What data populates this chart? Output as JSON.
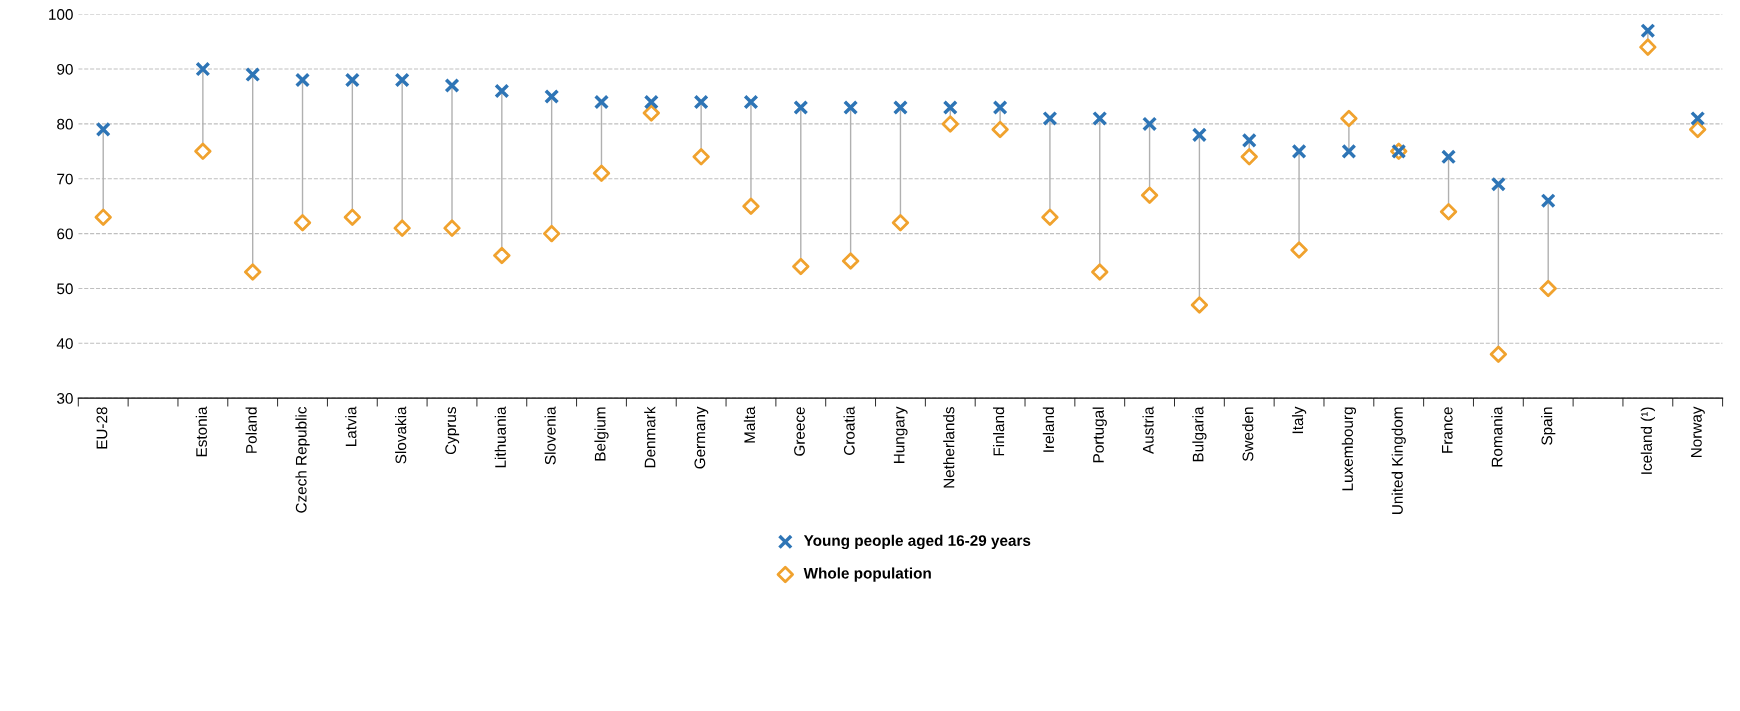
{
  "chart_data": {
    "type": "scatter",
    "categories": [
      "EU-28",
      null,
      "Estonia",
      "Poland",
      "Czech Republic",
      "Latvia",
      "Slovakia",
      "Cyprus",
      "Lithuania",
      "Slovenia",
      "Belgium",
      "Denmark",
      "Germany",
      "Malta",
      "Greece",
      "Croatia",
      "Hungary",
      "Netherlands",
      "Finland",
      "Ireland",
      "Portugal",
      "Austria",
      "Bulgaria",
      "Sweden",
      "Italy",
      "Luxembourg",
      "United Kingdom",
      "France",
      "Romania",
      "Spain",
      null,
      "Iceland (¹)",
      "Norway"
    ],
    "series": [
      {
        "name": "Young people aged 16-29 years",
        "color": "#2e75b6",
        "marker": "cross",
        "values": [
          79,
          null,
          90,
          89,
          88,
          88,
          88,
          87,
          86,
          85,
          84,
          84,
          84,
          84,
          83,
          83,
          83,
          83,
          83,
          81,
          81,
          80,
          78,
          77,
          75,
          75,
          75,
          74,
          69,
          66,
          null,
          97,
          81
        ]
      },
      {
        "name": "Whole population",
        "color": "#f0a22e",
        "marker": "diamond",
        "values": [
          63,
          null,
          75,
          53,
          62,
          63,
          61,
          61,
          56,
          60,
          71,
          82,
          74,
          65,
          54,
          55,
          62,
          80,
          79,
          63,
          53,
          67,
          47,
          74,
          57,
          81,
          75,
          64,
          38,
          50,
          null,
          94,
          79
        ]
      }
    ],
    "ylim": [
      30,
      100
    ],
    "yticks": [
      30,
      40,
      50,
      60,
      70,
      80,
      90,
      100
    ],
    "grid": "y",
    "legend": "bottom"
  }
}
